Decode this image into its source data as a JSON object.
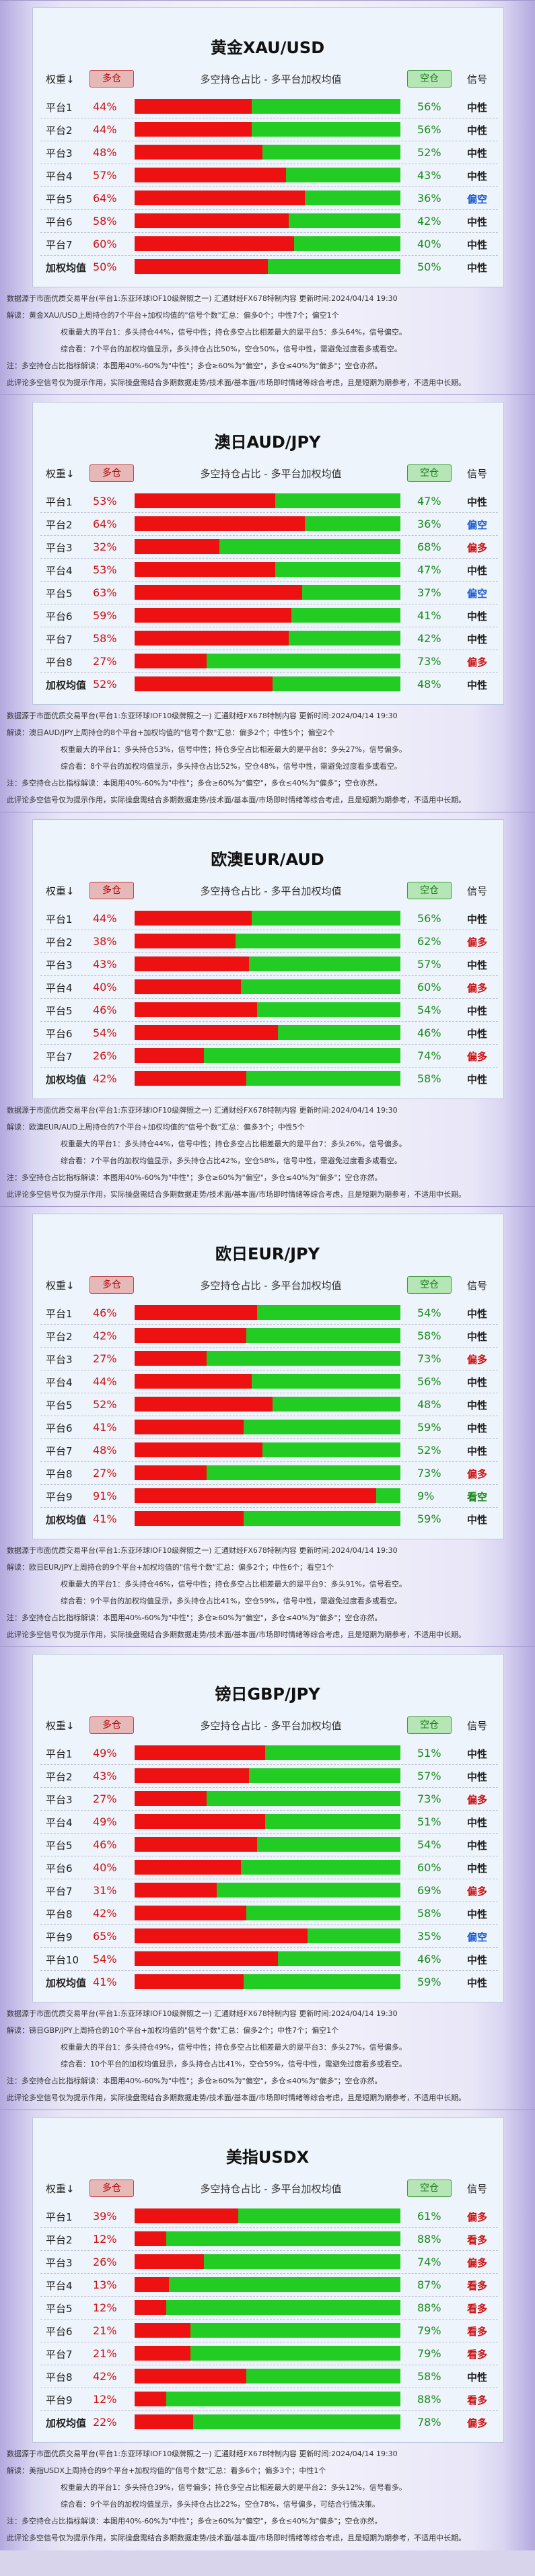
{
  "labels": {
    "weight": "权重↓",
    "long": "多仓",
    "short": "空仓",
    "mid": "多空持仓占比 - 多平台加权均值",
    "signal": "信号"
  },
  "colors": {
    "neutral": "#222222",
    "biasLong": "#cc1111",
    "biasShort": "#1a5ad0",
    "longStrong": "#cc1111",
    "shortStrong": "#118811"
  },
  "sections": [
    {
      "title": "黄金XAU/USD",
      "rows": [
        {
          "label": "平台1",
          "long": "44%",
          "short": "56%",
          "signal": "中性",
          "tone": "neutral",
          "fill": 44
        },
        {
          "label": "平台2",
          "long": "44%",
          "short": "56%",
          "signal": "中性",
          "tone": "neutral",
          "fill": 44
        },
        {
          "label": "平台3",
          "long": "48%",
          "short": "52%",
          "signal": "中性",
          "tone": "neutral",
          "fill": 48
        },
        {
          "label": "平台4",
          "long": "57%",
          "short": "43%",
          "signal": "中性",
          "tone": "neutral",
          "fill": 57
        },
        {
          "label": "平台5",
          "long": "64%",
          "short": "36%",
          "signal": "偏空",
          "tone": "biasShort",
          "fill": 64
        },
        {
          "label": "平台6",
          "long": "58%",
          "short": "42%",
          "signal": "中性",
          "tone": "neutral",
          "fill": 58
        },
        {
          "label": "平台7",
          "long": "60%",
          "short": "40%",
          "signal": "中性",
          "tone": "neutral",
          "fill": 60
        },
        {
          "label": "加权均值",
          "long": "50%",
          "short": "50%",
          "signal": "中性",
          "tone": "neutral",
          "fill": 50,
          "avg": true
        }
      ],
      "info": [
        "数据源于市面优质交易平台(平台1:东亚环球IOF10级牌照之一)   汇通财经FX678特制内容   更新时间:2024/04/14 19:30",
        "解读：黄金XAU/USD上周持仓的7个平台+加权均值的\"信号个数\"汇总：偏多0个；中性7个；偏空1个",
        "权重最大的平台1：多头持仓44%，信号中性；持仓多空占比相差最大的是平台5：多头64%，信号偏空。",
        "综合看：7个平台的加权均值显示，多头持仓占比50%，空仓50%，信号中性，需避免过度看多或看空。",
        "注：多空持仓占比指标解读：本图用40%-60%为\"中性\"；多仓≥60%为\"偏空\"，多仓≤40%为\"偏多\"；空仓亦然。",
        "此评论多空信号仅为提示作用，实际操盘需结合多期数据走势/技术面/基本面/市场即时情绪等综合考虑，且是短期为期参考，不适用中长期。"
      ]
    },
    {
      "title": "澳日AUD/JPY",
      "rows": [
        {
          "label": "平台1",
          "long": "53%",
          "short": "47%",
          "signal": "中性",
          "tone": "neutral",
          "fill": 53
        },
        {
          "label": "平台2",
          "long": "64%",
          "short": "36%",
          "signal": "偏空",
          "tone": "biasShort",
          "fill": 64
        },
        {
          "label": "平台3",
          "long": "32%",
          "short": "68%",
          "signal": "偏多",
          "tone": "biasLong",
          "fill": 32
        },
        {
          "label": "平台4",
          "long": "53%",
          "short": "47%",
          "signal": "中性",
          "tone": "neutral",
          "fill": 53
        },
        {
          "label": "平台5",
          "long": "63%",
          "short": "37%",
          "signal": "偏空",
          "tone": "biasShort",
          "fill": 63
        },
        {
          "label": "平台6",
          "long": "59%",
          "short": "41%",
          "signal": "中性",
          "tone": "neutral",
          "fill": 59
        },
        {
          "label": "平台7",
          "long": "58%",
          "short": "42%",
          "signal": "中性",
          "tone": "neutral",
          "fill": 58
        },
        {
          "label": "平台8",
          "long": "27%",
          "short": "73%",
          "signal": "偏多",
          "tone": "biasLong",
          "fill": 27
        },
        {
          "label": "加权均值",
          "long": "52%",
          "short": "48%",
          "signal": "中性",
          "tone": "neutral",
          "fill": 52,
          "avg": true
        }
      ],
      "info": [
        "数据源于市面优质交易平台(平台1:东亚环球IOF10级牌照之一)   汇通财经FX678特制内容   更新时间:2024/04/14 19:30",
        "解读：澳日AUD/JPY上周持仓的8个平台+加权均值的\"信号个数\"汇总：偏多2个；中性5个；偏空2个",
        "权重最大的平台1：多头持仓53%，信号中性；持仓多空占比相差最大的是平台8：多头27%，信号偏多。",
        "综合看：8个平台的加权均值显示，多头持仓占比52%，空仓48%，信号中性，需避免过度看多或看空。",
        "注：多空持仓占比指标解读：本图用40%-60%为\"中性\"；多仓≥60%为\"偏空\"，多仓≤40%为\"偏多\"；空仓亦然。",
        "此评论多空信号仅为提示作用，实际操盘需结合多期数据走势/技术面/基本面/市场即时情绪等综合考虑，且是短期为期参考，不适用中长期。"
      ]
    },
    {
      "title": "欧澳EUR/AUD",
      "rows": [
        {
          "label": "平台1",
          "long": "44%",
          "short": "56%",
          "signal": "中性",
          "tone": "neutral",
          "fill": 44
        },
        {
          "label": "平台2",
          "long": "38%",
          "short": "62%",
          "signal": "偏多",
          "tone": "biasLong",
          "fill": 38
        },
        {
          "label": "平台3",
          "long": "43%",
          "short": "57%",
          "signal": "中性",
          "tone": "neutral",
          "fill": 43
        },
        {
          "label": "平台4",
          "long": "40%",
          "short": "60%",
          "signal": "偏多",
          "tone": "biasLong",
          "fill": 40
        },
        {
          "label": "平台5",
          "long": "46%",
          "short": "54%",
          "signal": "中性",
          "tone": "neutral",
          "fill": 46
        },
        {
          "label": "平台6",
          "long": "54%",
          "short": "46%",
          "signal": "中性",
          "tone": "neutral",
          "fill": 54
        },
        {
          "label": "平台7",
          "long": "26%",
          "short": "74%",
          "signal": "偏多",
          "tone": "biasLong",
          "fill": 26
        },
        {
          "label": "加权均值",
          "long": "42%",
          "short": "58%",
          "signal": "中性",
          "tone": "neutral",
          "fill": 42,
          "avg": true
        }
      ],
      "info": [
        "数据源于市面优质交易平台(平台1:东亚环球IOF10级牌照之一)   汇通财经FX678特制内容   更新时间:2024/04/14 19:30",
        "解读：欧澳EUR/AUD上周持仓的7个平台+加权均值的\"信号个数\"汇总：偏多3个；中性5个",
        "权重最大的平台1：多头持仓44%，信号中性；持仓多空占比相差最大的是平台7：多头26%，信号偏多。",
        "综合看：7个平台的加权均值显示，多头持仓占比42%，空仓58%，信号中性，需避免过度看多或看空。",
        "注：多空持仓占比指标解读：本图用40%-60%为\"中性\"；多仓≥60%为\"偏空\"，多仓≤40%为\"偏多\"；空仓亦然。",
        "此评论多空信号仅为提示作用，实际操盘需结合多期数据走势/技术面/基本面/市场即时情绪等综合考虑，且是短期为期参考，不适用中长期。"
      ]
    },
    {
      "title": "欧日EUR/JPY",
      "rows": [
        {
          "label": "平台1",
          "long": "46%",
          "short": "54%",
          "signal": "中性",
          "tone": "neutral",
          "fill": 46
        },
        {
          "label": "平台2",
          "long": "42%",
          "short": "58%",
          "signal": "中性",
          "tone": "neutral",
          "fill": 42
        },
        {
          "label": "平台3",
          "long": "27%",
          "short": "73%",
          "signal": "偏多",
          "tone": "biasLong",
          "fill": 27
        },
        {
          "label": "平台4",
          "long": "44%",
          "short": "56%",
          "signal": "中性",
          "tone": "neutral",
          "fill": 44
        },
        {
          "label": "平台5",
          "long": "52%",
          "short": "48%",
          "signal": "中性",
          "tone": "neutral",
          "fill": 52
        },
        {
          "label": "平台6",
          "long": "41%",
          "short": "59%",
          "signal": "中性",
          "tone": "neutral",
          "fill": 41
        },
        {
          "label": "平台7",
          "long": "48%",
          "short": "52%",
          "signal": "中性",
          "tone": "neutral",
          "fill": 48
        },
        {
          "label": "平台8",
          "long": "27%",
          "short": "73%",
          "signal": "偏多",
          "tone": "biasLong",
          "fill": 27
        },
        {
          "label": "平台9",
          "long": "91%",
          "short": "9%",
          "signal": "看空",
          "tone": "shortStrong",
          "fill": 91
        },
        {
          "label": "加权均值",
          "long": "41%",
          "short": "59%",
          "signal": "中性",
          "tone": "neutral",
          "fill": 41,
          "avg": true
        }
      ],
      "info": [
        "数据源于市面优质交易平台(平台1:东亚环球IOF10级牌照之一)   汇通财经FX678特制内容   更新时间:2024/04/14 19:30",
        "解读：欧日EUR/JPY上周持仓的9个平台+加权均值的\"信号个数\"汇总：偏多2个；中性6个；看空1个",
        "权重最大的平台1：多头持仓46%，信号中性；持仓多空占比相差最大的是平台9：多头91%，信号看空。",
        "综合看：9个平台的加权均值显示，多头持仓占比41%，空仓59%，信号中性，需避免过度看多或看空。",
        "注：多空持仓占比指标解读：本图用40%-60%为\"中性\"；多仓≥60%为\"偏空\"，多仓≤40%为\"偏多\"；空仓亦然。",
        "此评论多空信号仅为提示作用，实际操盘需结合多期数据走势/技术面/基本面/市场即时情绪等综合考虑，且是短期为期参考，不适用中长期。"
      ]
    },
    {
      "title": "镑日GBP/JPY",
      "rows": [
        {
          "label": "平台1",
          "long": "49%",
          "short": "51%",
          "signal": "中性",
          "tone": "neutral",
          "fill": 49
        },
        {
          "label": "平台2",
          "long": "43%",
          "short": "57%",
          "signal": "中性",
          "tone": "neutral",
          "fill": 43
        },
        {
          "label": "平台3",
          "long": "27%",
          "short": "73%",
          "signal": "偏多",
          "tone": "biasLong",
          "fill": 27
        },
        {
          "label": "平台4",
          "long": "49%",
          "short": "51%",
          "signal": "中性",
          "tone": "neutral",
          "fill": 49
        },
        {
          "label": "平台5",
          "long": "46%",
          "short": "54%",
          "signal": "中性",
          "tone": "neutral",
          "fill": 46
        },
        {
          "label": "平台6",
          "long": "40%",
          "short": "60%",
          "signal": "中性",
          "tone": "neutral",
          "fill": 40
        },
        {
          "label": "平台7",
          "long": "31%",
          "short": "69%",
          "signal": "偏多",
          "tone": "biasLong",
          "fill": 31
        },
        {
          "label": "平台8",
          "long": "42%",
          "short": "58%",
          "signal": "中性",
          "tone": "neutral",
          "fill": 42
        },
        {
          "label": "平台9",
          "long": "65%",
          "short": "35%",
          "signal": "偏空",
          "tone": "biasShort",
          "fill": 65
        },
        {
          "label": "平台10",
          "long": "54%",
          "short": "46%",
          "signal": "中性",
          "tone": "neutral",
          "fill": 54
        },
        {
          "label": "加权均值",
          "long": "41%",
          "short": "59%",
          "signal": "中性",
          "tone": "neutral",
          "fill": 41,
          "avg": true
        }
      ],
      "info": [
        "数据源于市面优质交易平台(平台1:东亚环球IOF10级牌照之一)   汇通财经FX678特制内容   更新时间:2024/04/14 19:30",
        "解读：镑日GBP/JPY上周持仓的10个平台+加权均值的\"信号个数\"汇总：偏多2个；中性7个；偏空1个",
        "权重最大的平台1：多头持仓49%，信号中性；持仓多空占比相差最大的是平台3：多头27%，信号偏多。",
        "综合看：10个平台的加权均值显示，多头持仓占比41%，空仓59%，信号中性，需避免过度看多或看空。",
        "注：多空持仓占比指标解读：本图用40%-60%为\"中性\"；多仓≥60%为\"偏空\"，多仓≤40%为\"偏多\"；空仓亦然。",
        "此评论多空信号仅为提示作用，实际操盘需结合多期数据走势/技术面/基本面/市场即时情绪等综合考虑，且是短期为期参考，不适用中长期。"
      ]
    },
    {
      "title": "美指USDX",
      "rows": [
        {
          "label": "平台1",
          "long": "39%",
          "short": "61%",
          "signal": "偏多",
          "tone": "biasLong",
          "fill": 39
        },
        {
          "label": "平台2",
          "long": "12%",
          "short": "88%",
          "signal": "看多",
          "tone": "longStrong",
          "fill": 12
        },
        {
          "label": "平台3",
          "long": "26%",
          "short": "74%",
          "signal": "偏多",
          "tone": "biasLong",
          "fill": 26
        },
        {
          "label": "平台4",
          "long": "13%",
          "short": "87%",
          "signal": "看多",
          "tone": "longStrong",
          "fill": 13
        },
        {
          "label": "平台5",
          "long": "12%",
          "short": "88%",
          "signal": "看多",
          "tone": "longStrong",
          "fill": 12
        },
        {
          "label": "平台6",
          "long": "21%",
          "short": "79%",
          "signal": "看多",
          "tone": "longStrong",
          "fill": 21
        },
        {
          "label": "平台7",
          "long": "21%",
          "short": "79%",
          "signal": "看多",
          "tone": "longStrong",
          "fill": 21
        },
        {
          "label": "平台8",
          "long": "42%",
          "short": "58%",
          "signal": "中性",
          "tone": "neutral",
          "fill": 42
        },
        {
          "label": "平台9",
          "long": "12%",
          "short": "88%",
          "signal": "看多",
          "tone": "longStrong",
          "fill": 12
        },
        {
          "label": "加权均值",
          "long": "22%",
          "short": "78%",
          "signal": "偏多",
          "tone": "biasLong",
          "fill": 22,
          "avg": true
        }
      ],
      "info": [
        "数据源于市面优质交易平台(平台1:东亚环球IOF10级牌照之一)   汇通财经FX678特制内容   更新时间:2024/04/14 19:30",
        "解读：美指USDX上周持仓的9个平台+加权均值的\"信号个数\"汇总：看多6个；偏多3个；中性1个",
        "权重最大的平台1：多头持仓39%，信号偏多；持仓多空占比相差最大的是平台2：多头12%，信号看多。",
        "综合看：9个平台的加权均值显示，多头持仓占比22%，空仓78%，信号偏多，可结合行情决策。",
        "注：多空持仓占比指标解读：本图用40%-60%为\"中性\"；多仓≥60%为\"偏空\"，多仓≤40%为\"偏多\"；空仓亦然。",
        "此评论多空信号仅为提示作用，实际操盘需结合多期数据走势/技术面/基本面/市场即时情绪等综合考虑，且是短期为期参考，不适用中长期。"
      ]
    }
  ]
}
